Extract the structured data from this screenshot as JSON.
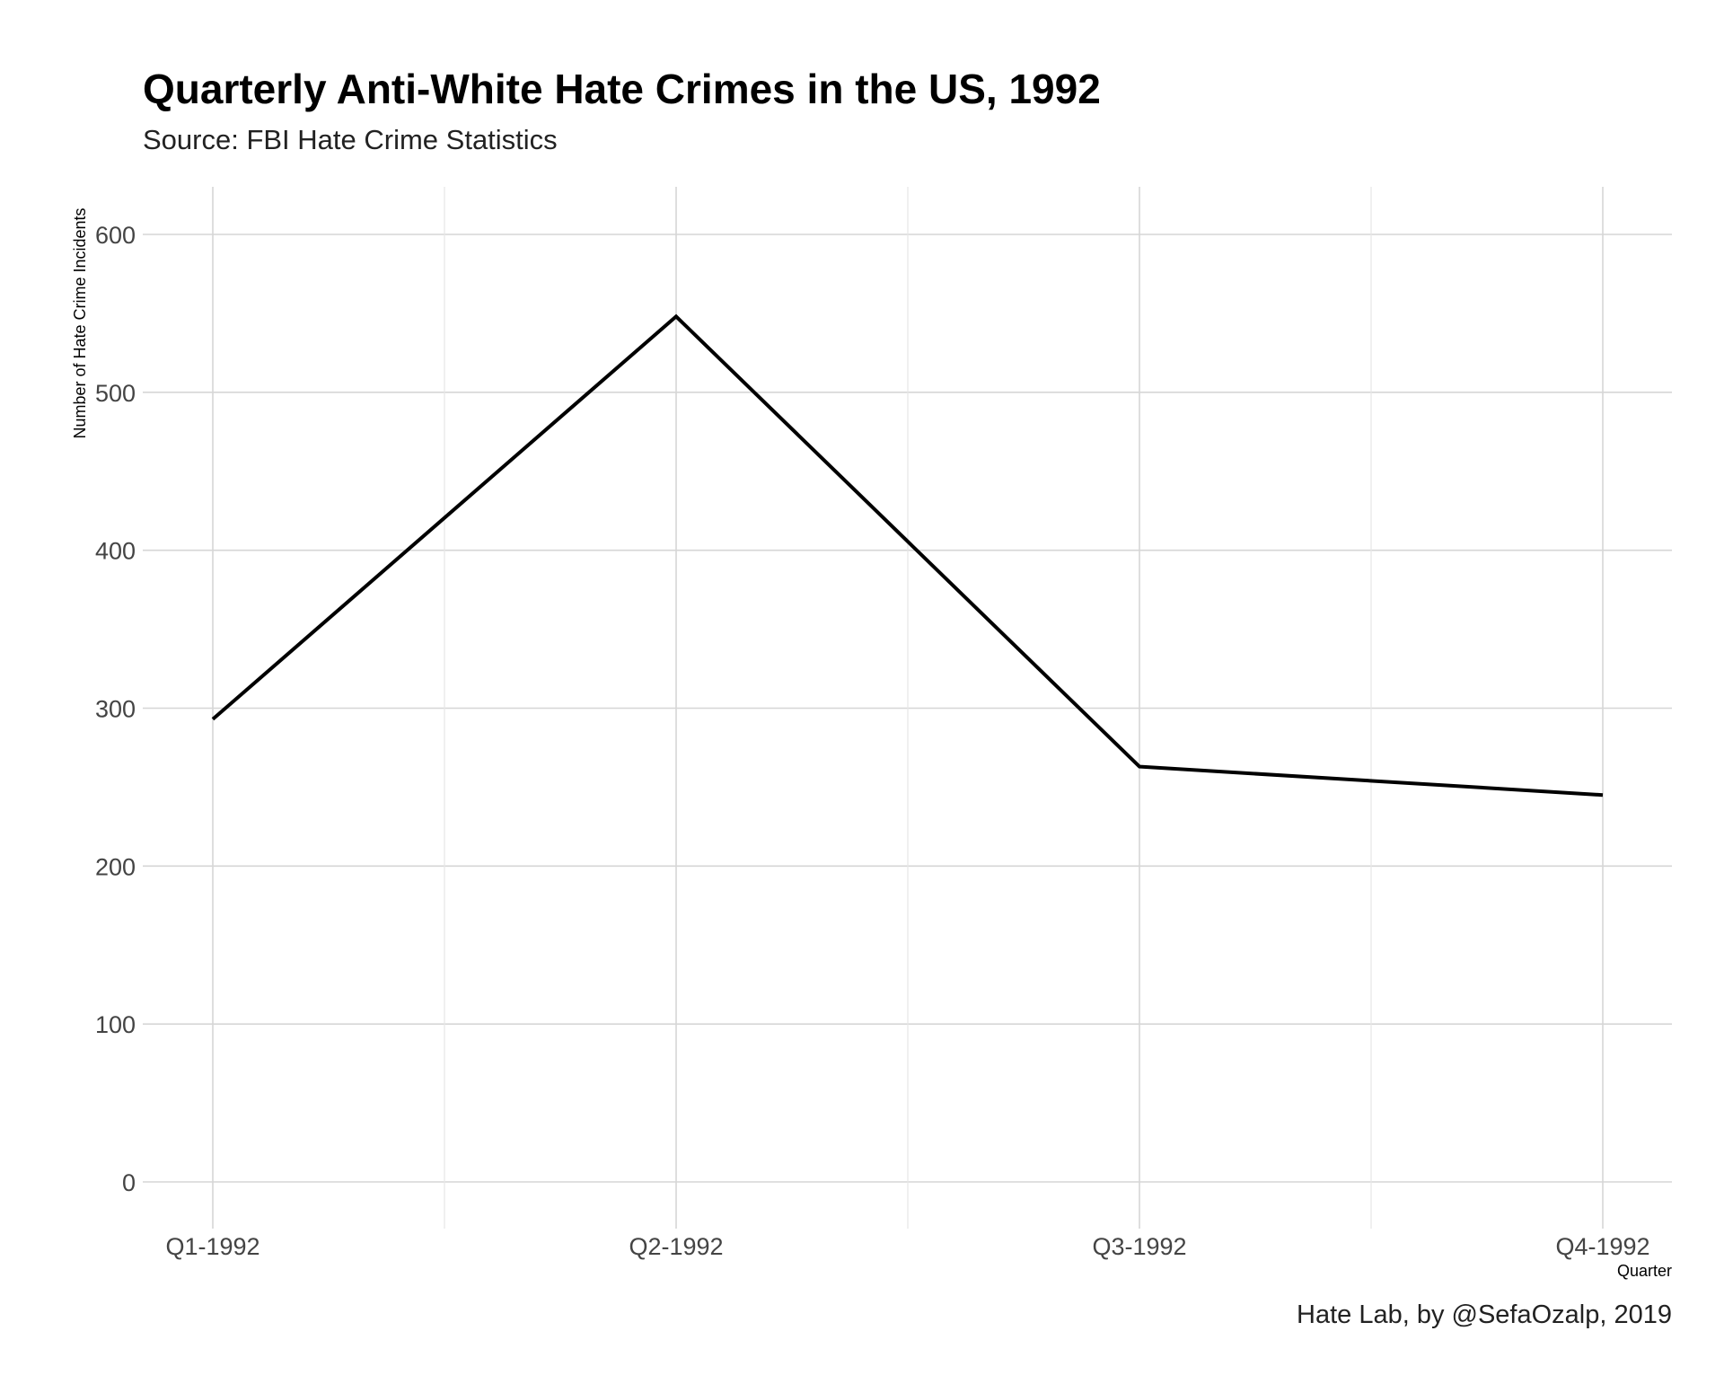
{
  "chart_data": {
    "type": "line",
    "title": "Quarterly Anti-White Hate Crimes in the US, 1992",
    "subtitle": "Source: FBI Hate Crime Statistics",
    "caption": "Hate Lab, by @SefaOzalp, 2019",
    "xlabel": "Quarter",
    "ylabel": "Number of Hate Crime Incidents",
    "categories": [
      "Q1-1992",
      "Q2-1992",
      "Q3-1992",
      "Q4-1992"
    ],
    "series": [
      {
        "values": [
          293,
          548,
          263,
          245
        ],
        "color": "#000000"
      }
    ],
    "ylim": [
      0,
      600
    ],
    "yticks": [
      0,
      100,
      200,
      300,
      400,
      500,
      600
    ],
    "grid": true,
    "legend": "none"
  }
}
